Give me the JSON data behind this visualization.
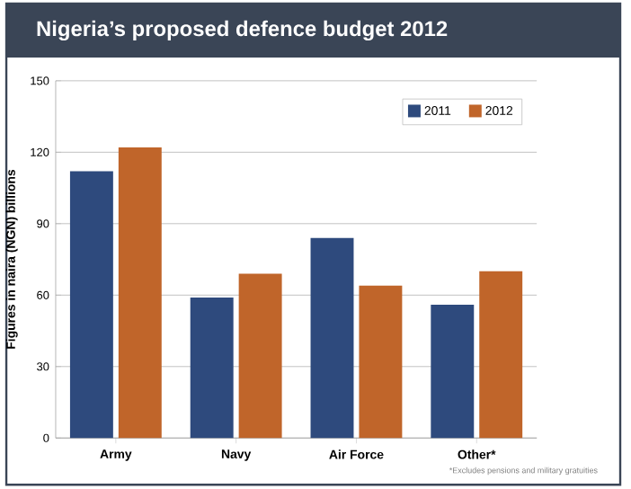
{
  "chart_data": {
    "type": "bar",
    "title": "Nigeria’s proposed defence budget 2012",
    "ylabel": "Figures in naira (NGN) billions",
    "categories": [
      "Army",
      "Navy",
      "Air Force",
      "Other*"
    ],
    "series": [
      {
        "name": "2011",
        "color": "#2e4a7d",
        "values": [
          112,
          59,
          84,
          56
        ]
      },
      {
        "name": "2012",
        "color": "#c0652a",
        "values": [
          122,
          69,
          64,
          70
        ]
      }
    ],
    "ylim": [
      0,
      150
    ],
    "yticks": [
      0,
      30,
      60,
      90,
      120,
      150
    ],
    "grid": "y",
    "legend": "top right",
    "annotations": [
      "*Excludes pensions and military gratuities"
    ]
  }
}
